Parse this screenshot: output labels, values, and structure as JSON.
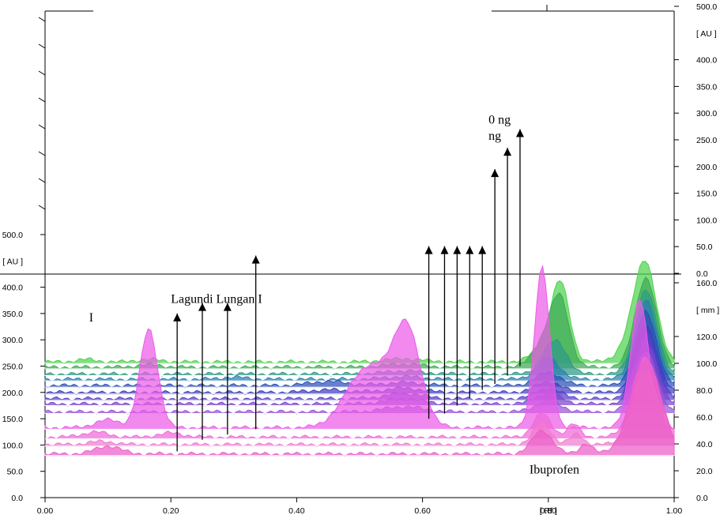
{
  "chart_data": {
    "type": "area",
    "title": "",
    "x_axis": {
      "range": [
        0.0,
        1.0
      ],
      "ticks": [
        "0.00",
        "0.20",
        "0.40",
        "0.60",
        "0.80",
        "1.00"
      ],
      "tick_values": [
        0.0,
        0.2,
        0.4,
        0.6,
        0.8,
        1.0
      ],
      "unit_label": "[ Rf ]",
      "unit_at": 0.8
    },
    "left_axis_lower": {
      "range": [
        0,
        500
      ],
      "ticks": [
        "0.0",
        "50.0",
        "100.0",
        "150.0",
        "200.0",
        "250.0",
        "300.0",
        "350.0",
        "400.0",
        "500.0"
      ],
      "tick_values": [
        0,
        50,
        100,
        150,
        200,
        250,
        300,
        350,
        400,
        500
      ],
      "unit_label": "[ AU ]",
      "unit_at": 450
    },
    "right_axis_upper": {
      "range": [
        0,
        500
      ],
      "ticks": [
        "0.0",
        "50.0",
        "100.0",
        "150.0",
        "200.0",
        "250.0",
        "300.0",
        "350.0",
        "400.0",
        "500.0"
      ],
      "tick_values": [
        0,
        50,
        100,
        150,
        200,
        250,
        300,
        350,
        400,
        500
      ],
      "unit_label": "[ AU ]",
      "unit_at": 450
    },
    "right_axis_mm": {
      "range": [
        0,
        160
      ],
      "ticks": [
        "0.0",
        "20.0",
        "40.0",
        "60.0",
        "80.0",
        "100.0",
        "120.0",
        "160.0"
      ],
      "tick_values": [
        0,
        20,
        40,
        60,
        80,
        100,
        120,
        160
      ],
      "unit_label": "[ mm ]",
      "unit_at": 140
    },
    "grid": false,
    "annotations": [
      {
        "text": "Ibuprofen",
        "x": 0.77,
        "y_mm": 18
      },
      {
        "text": "I",
        "x": 0.07,
        "y_au": 335
      },
      {
        "text": "0 ng",
        "x": 0.705,
        "y_au_upper": 280
      },
      {
        "text": "ng",
        "x": 0.705,
        "y_au_upper": 250
      },
      {
        "text": "Lagundi Lungan I",
        "x": 0.2,
        "y_au": 370
      }
    ],
    "series": [
      {
        "color": "#4fd24f",
        "offset": 255,
        "peaks": [
          [
            0.065,
            5,
            0.015
          ],
          [
            0.165,
            5,
            0.018
          ],
          [
            0.57,
            6,
            0.03
          ],
          [
            0.82,
            130,
            0.014
          ],
          [
            0.8,
            40,
            0.02
          ],
          [
            0.955,
            170,
            0.017
          ],
          [
            0.935,
            40,
            0.02
          ]
        ]
      },
      {
        "color": "#3daa55",
        "offset": 245,
        "peaks": [
          [
            0.165,
            5,
            0.018
          ],
          [
            0.57,
            6,
            0.03
          ],
          [
            0.82,
            100,
            0.014
          ],
          [
            0.8,
            60,
            0.02
          ],
          [
            0.955,
            170,
            0.017
          ]
        ]
      },
      {
        "color": "#2f9a88",
        "offset": 232,
        "peaks": [
          [
            0.57,
            6,
            0.03
          ],
          [
            0.8,
            40,
            0.015
          ],
          [
            0.82,
            40,
            0.014
          ],
          [
            0.955,
            160,
            0.017
          ]
        ]
      },
      {
        "color": "#2a7fb0",
        "offset": 222,
        "peaks": [
          [
            0.3,
            4,
            0.02
          ],
          [
            0.57,
            5,
            0.03
          ],
          [
            0.8,
            40,
            0.018
          ],
          [
            0.955,
            150,
            0.017
          ]
        ]
      },
      {
        "color": "#2c4fb8",
        "offset": 210,
        "peaks": [
          [
            0.45,
            8,
            0.03
          ],
          [
            0.57,
            6,
            0.03
          ],
          [
            0.8,
            25,
            0.02
          ],
          [
            0.955,
            140,
            0.017
          ]
        ]
      },
      {
        "color": "#3f3fc0",
        "offset": 197,
        "peaks": [
          [
            0.45,
            5,
            0.03
          ],
          [
            0.57,
            8,
            0.03
          ],
          [
            0.8,
            20,
            0.02
          ],
          [
            0.955,
            130,
            0.017
          ]
        ]
      },
      {
        "color": "#5a3fc8",
        "offset": 185,
        "peaks": [
          [
            0.57,
            10,
            0.03
          ],
          [
            0.8,
            20,
            0.02
          ],
          [
            0.955,
            125,
            0.017
          ]
        ]
      },
      {
        "color": "#7a47d0",
        "offset": 175,
        "peaks": [
          [
            0.57,
            10,
            0.03
          ],
          [
            0.8,
            20,
            0.02
          ],
          [
            0.955,
            120,
            0.017
          ]
        ]
      },
      {
        "color": "#9a55d8",
        "offset": 160,
        "peaks": [
          [
            0.57,
            10,
            0.03
          ],
          [
            0.8,
            20,
            0.02
          ],
          [
            0.955,
            115,
            0.017
          ]
        ]
      },
      {
        "color": "#ec5ce8",
        "offset": 130,
        "peaks": [
          [
            0.1,
            15,
            0.02
          ],
          [
            0.165,
            188,
            0.014
          ],
          [
            0.5,
            70,
            0.03
          ],
          [
            0.575,
            180,
            0.022
          ],
          [
            0.53,
            60,
            0.03
          ],
          [
            0.79,
            305,
            0.012
          ],
          [
            0.945,
            245,
            0.014
          ]
        ]
      },
      {
        "color": "#f06ad8",
        "offset": 112,
        "peaks": [
          [
            0.08,
            10,
            0.02
          ],
          [
            0.2,
            8,
            0.02
          ],
          [
            0.79,
            45,
            0.014
          ],
          [
            0.84,
            25,
            0.01
          ],
          [
            0.955,
            150,
            0.02
          ]
        ]
      },
      {
        "color": "#f07bd0",
        "offset": 98,
        "peaks": [
          [
            0.09,
            6,
            0.02
          ],
          [
            0.79,
            40,
            0.014
          ],
          [
            0.845,
            20,
            0.01
          ],
          [
            0.955,
            140,
            0.02
          ]
        ]
      },
      {
        "color": "#ec5ec8",
        "offset": 80,
        "peaks": [
          [
            0.1,
            15,
            0.02
          ],
          [
            0.79,
            45,
            0.016
          ],
          [
            0.86,
            20,
            0.01
          ],
          [
            0.955,
            180,
            0.024
          ]
        ]
      }
    ],
    "markers": [
      {
        "x": 0.21,
        "lo_au": 88,
        "hi_au": 350
      },
      {
        "x": 0.25,
        "lo_au": 110,
        "hi_au": 370
      },
      {
        "x": 0.29,
        "lo_au": 120,
        "hi_au": 370
      },
      {
        "x": 0.335,
        "lo_au": 130,
        "hi_au": 460
      },
      {
        "x": 0.61,
        "lo_au": 150,
        "hi_au": 478
      },
      {
        "x": 0.635,
        "lo_au": 160,
        "hi_au": 478
      },
      {
        "x": 0.655,
        "lo_au": 175,
        "hi_au": 478
      },
      {
        "x": 0.675,
        "lo_au": 190,
        "hi_au": 478
      },
      {
        "x": 0.695,
        "lo_au": 205,
        "hi_au": 478
      },
      {
        "x": 0.715,
        "lo_au": 216,
        "hi_au_upper": 195
      },
      {
        "x": 0.735,
        "lo_au": 232,
        "hi_au_upper": 235
      },
      {
        "x": 0.755,
        "lo_au": 250,
        "hi_au_upper": 270
      }
    ]
  }
}
